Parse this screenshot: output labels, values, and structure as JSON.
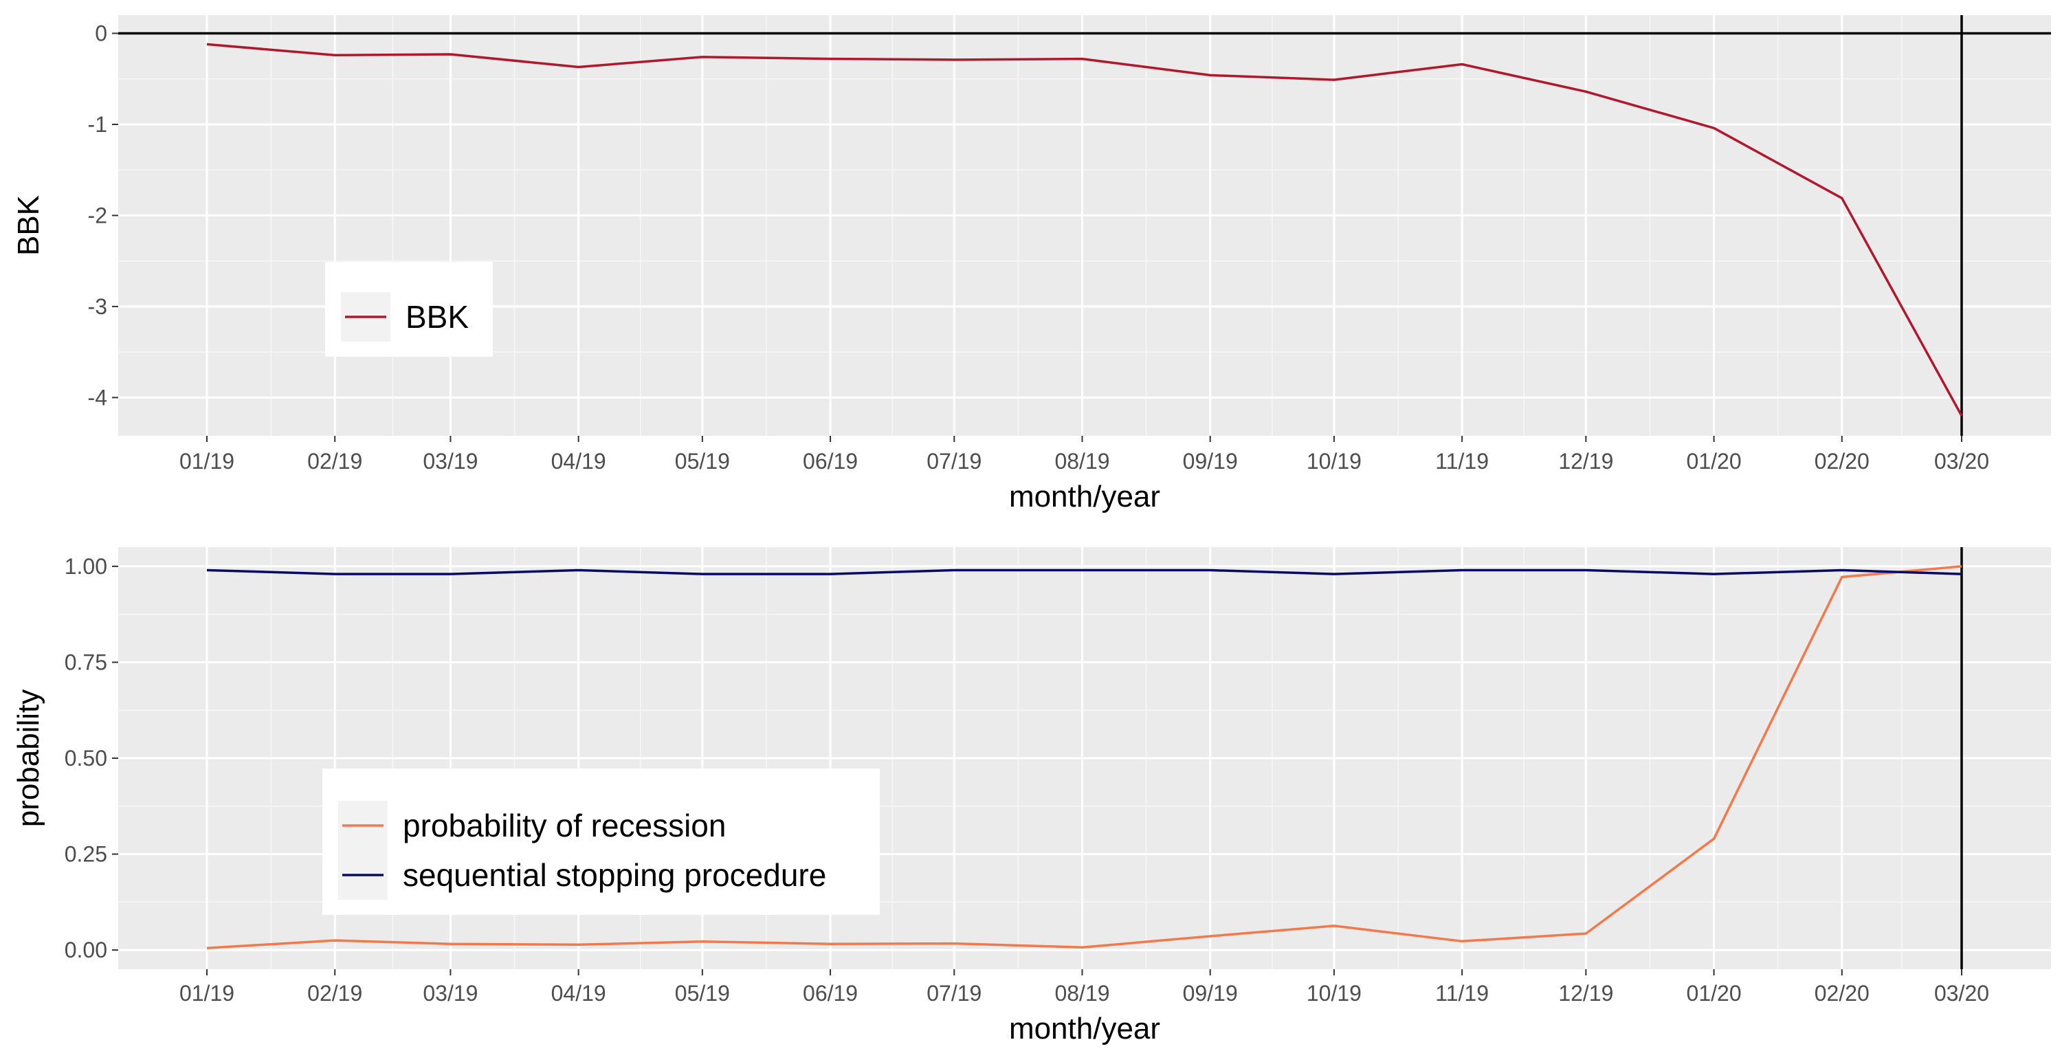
{
  "figure": {
    "panels": [
      {
        "xlabel": "month/year",
        "ylabel": "BBK"
      },
      {
        "xlabel": "month/year",
        "ylabel": "probability"
      }
    ]
  },
  "chart_data": [
    {
      "type": "line",
      "title": "",
      "xlabel": "month/year",
      "ylabel": "BBK",
      "x": [
        "01/19",
        "02/19",
        "03/19",
        "04/19",
        "05/19",
        "06/19",
        "07/19",
        "08/19",
        "09/19",
        "10/19",
        "11/19",
        "12/19",
        "01/20",
        "02/20",
        "03/20"
      ],
      "x_days": [
        0,
        31,
        59,
        90,
        120,
        151,
        181,
        212,
        243,
        273,
        304,
        334,
        365,
        396,
        425
      ],
      "series": [
        {
          "name": "BBK",
          "color": "#b2182b",
          "values": [
            -0.12,
            -0.24,
            -0.23,
            -0.37,
            -0.26,
            -0.28,
            -0.29,
            -0.28,
            -0.46,
            -0.51,
            -0.34,
            -0.64,
            -1.04,
            -1.81,
            -4.2
          ]
        }
      ],
      "ylim": [
        -4.42,
        0.2
      ],
      "yticks": [
        0,
        -1,
        -2,
        -3,
        -4
      ],
      "ytick_labels": [
        "0",
        "-1",
        "-2",
        "-3",
        "-4"
      ],
      "hline": 0,
      "vline": "03/20",
      "grid": true,
      "legend": "bottom-left"
    },
    {
      "type": "line",
      "title": "",
      "xlabel": "month/year",
      "ylabel": "probability",
      "x": [
        "01/19",
        "02/19",
        "03/19",
        "04/19",
        "05/19",
        "06/19",
        "07/19",
        "08/19",
        "09/19",
        "10/19",
        "11/19",
        "12/19",
        "01/20",
        "02/20",
        "03/20"
      ],
      "x_days": [
        0,
        31,
        59,
        90,
        120,
        151,
        181,
        212,
        243,
        273,
        304,
        334,
        365,
        396,
        425
      ],
      "series": [
        {
          "name": "probability of recession",
          "color": "#f4794a",
          "values": [
            0.005,
            0.025,
            0.016,
            0.014,
            0.022,
            0.016,
            0.017,
            0.007,
            0.036,
            0.063,
            0.023,
            0.043,
            0.29,
            0.972,
            1.0
          ]
        },
        {
          "name": "sequential stopping procedure",
          "color": "#080a6b",
          "values": [
            0.99,
            0.98,
            0.98,
            0.99,
            0.98,
            0.98,
            0.99,
            0.99,
            0.99,
            0.98,
            0.99,
            0.99,
            0.98,
            0.99,
            0.98
          ]
        }
      ],
      "ylim": [
        -0.05,
        1.05
      ],
      "yticks": [
        0,
        0.25,
        0.5,
        0.75,
        1.0
      ],
      "ytick_labels": [
        "0.00",
        "0.25",
        "0.50",
        "0.75",
        "1.00"
      ],
      "vline": "03/20",
      "grid": true,
      "legend": "bottom-left"
    }
  ]
}
